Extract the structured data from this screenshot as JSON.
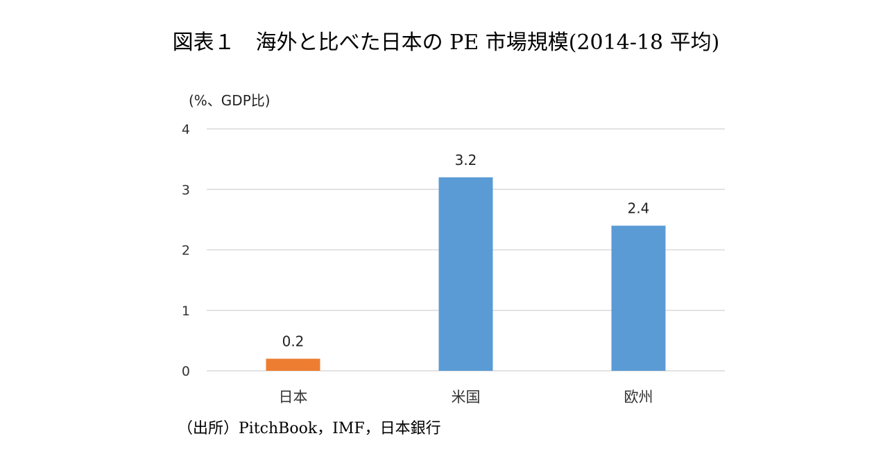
{
  "title": "図表１　海外と比べた日本の PE 市場規模(2014-18 平均)",
  "source": "（出所）PitchBook，IMF，日本銀行",
  "colors": {
    "japan": "#ED7D31",
    "others": "#5B9BD5",
    "grid": "#D9D9D9"
  },
  "chart_data": {
    "type": "bar",
    "title": "図表１　海外と比べた日本の PE 市場規模(2014-18 平均)",
    "ylabel": "(%、GDP比)",
    "xlabel": "",
    "categories": [
      "日本",
      "米国",
      "欧州"
    ],
    "values": [
      0.2,
      3.2,
      2.4
    ],
    "data_labels": [
      "0.2",
      "3.2",
      "2.4"
    ],
    "bar_colors": [
      "#ED7D31",
      "#5B9BD5",
      "#5B9BD5"
    ],
    "ylim": [
      0,
      4
    ],
    "yticks": [
      "0",
      "1",
      "2",
      "3",
      "4"
    ],
    "grid": true,
    "legend": "none"
  }
}
